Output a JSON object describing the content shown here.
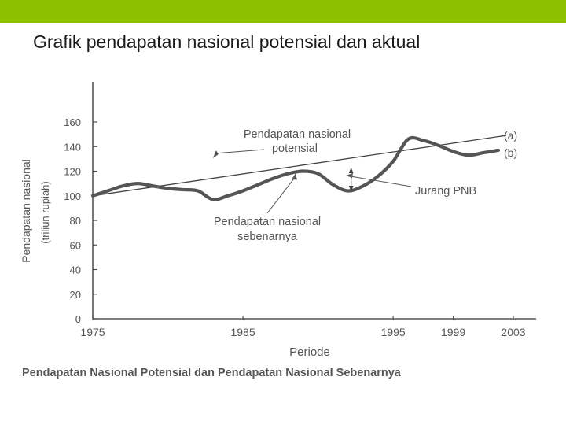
{
  "slide": {
    "title": "Grafik pendapatan nasional potensial dan aktual",
    "accent_color": "#8dc100"
  },
  "chart_data": {
    "type": "line",
    "caption": "Pendapatan Nasional Potensial dan Pendapatan Nasional Sebenarnya",
    "xlabel": "Periode",
    "ylabel": "Pendapatan nasional",
    "ylabel_unit": "(triliun rupiah)",
    "x_ticks": [
      "1975",
      "1985",
      "1995",
      "1999",
      "2003"
    ],
    "y_ticks": [
      0,
      20,
      40,
      60,
      80,
      100,
      120,
      140,
      160
    ],
    "xlim": [
      1975,
      2004
    ],
    "ylim": [
      0,
      165
    ],
    "grid": false,
    "series": [
      {
        "name": "Pendapatan nasional potensial",
        "legend": "(a)",
        "color": "#444444",
        "x": [
          1975,
          2002.5
        ],
        "y": [
          100,
          149
        ]
      },
      {
        "name": "Pendapatan nasional sebenarnya",
        "legend": "(b)",
        "color": "#555555",
        "x": [
          1975,
          1976,
          1977,
          1978,
          1979,
          1980,
          1981,
          1982,
          1983,
          1984,
          1985,
          1986,
          1987,
          1988,
          1989,
          1990,
          1991,
          1992,
          1993,
          1994,
          1995,
          1996,
          1997,
          1998,
          1999,
          2000,
          2001,
          2002
        ],
        "y": [
          100,
          104,
          108,
          110,
          108,
          106,
          105,
          104,
          97,
          100,
          104,
          109,
          114,
          118,
          120,
          118,
          109,
          104,
          108,
          116,
          128,
          146,
          145,
          141,
          136,
          133,
          135,
          137
        ]
      }
    ],
    "annotations": [
      {
        "text": [
          "Pendapatan nasional",
          "potensial"
        ],
        "x": 1983,
        "y": 128,
        "series": 0
      },
      {
        "text": [
          "Pendapatan nasional",
          "sebenarnya"
        ],
        "x": 1988.5,
        "y": 119.5,
        "series": 1
      },
      {
        "text": [
          "Jurang PNB"
        ],
        "x": 1992.5,
        "y": 117.5,
        "gap_at": 1992.2
      }
    ]
  }
}
